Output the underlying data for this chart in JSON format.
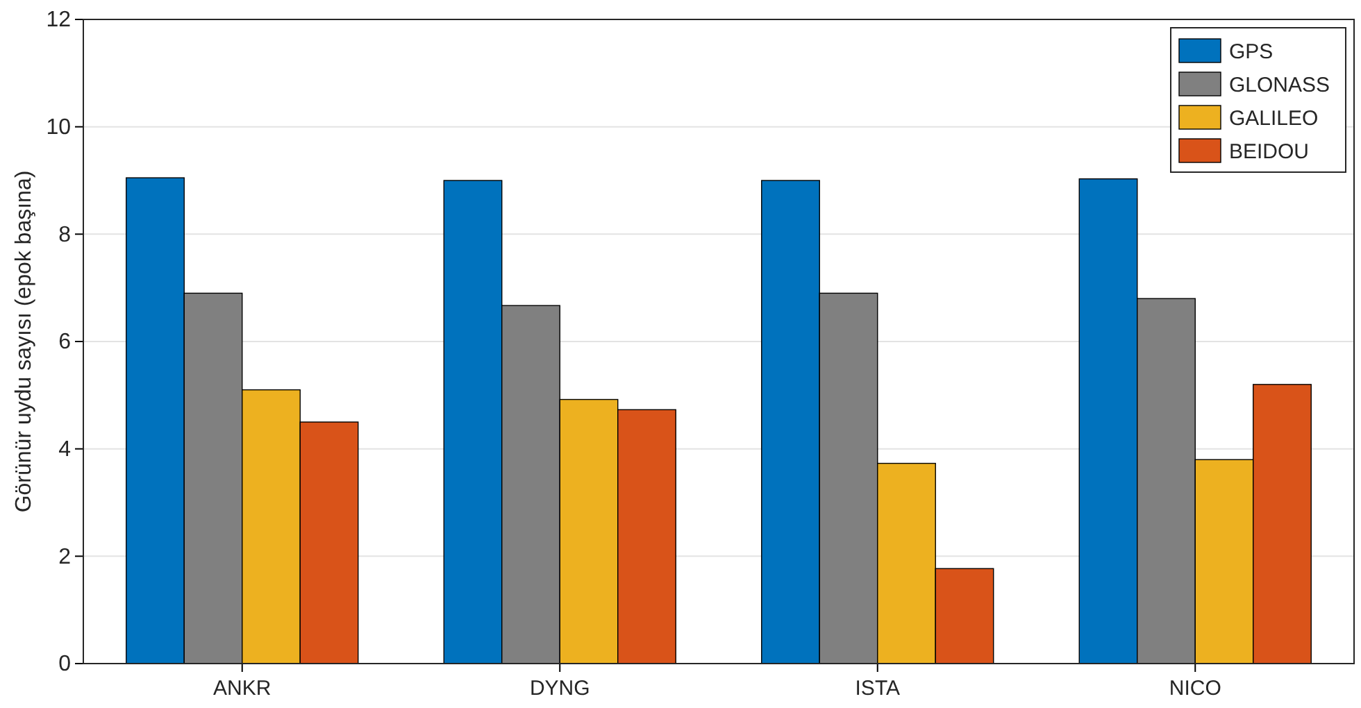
{
  "chart_data": {
    "type": "bar",
    "ylabel": "Görünür uydu sayısı (epok başına)",
    "categories": [
      "ANKR",
      "DYNG",
      "ISTA",
      "NICO"
    ],
    "series": [
      {
        "name": "GPS",
        "color": "#0072bd",
        "values": [
          9.05,
          9.0,
          9.0,
          9.03
        ]
      },
      {
        "name": "GLONASS",
        "color": "#808080",
        "values": [
          6.9,
          6.67,
          6.9,
          6.8
        ]
      },
      {
        "name": "GALILEO",
        "color": "#edb120",
        "values": [
          5.1,
          4.92,
          3.73,
          3.8
        ]
      },
      {
        "name": "BEIDOU",
        "color": "#d95319",
        "values": [
          4.5,
          4.73,
          1.77,
          5.2
        ]
      }
    ],
    "ylim": [
      0,
      12
    ],
    "yticks": [
      0,
      2,
      4,
      6,
      8,
      10,
      12
    ],
    "grid": "y",
    "legend": "top right"
  }
}
